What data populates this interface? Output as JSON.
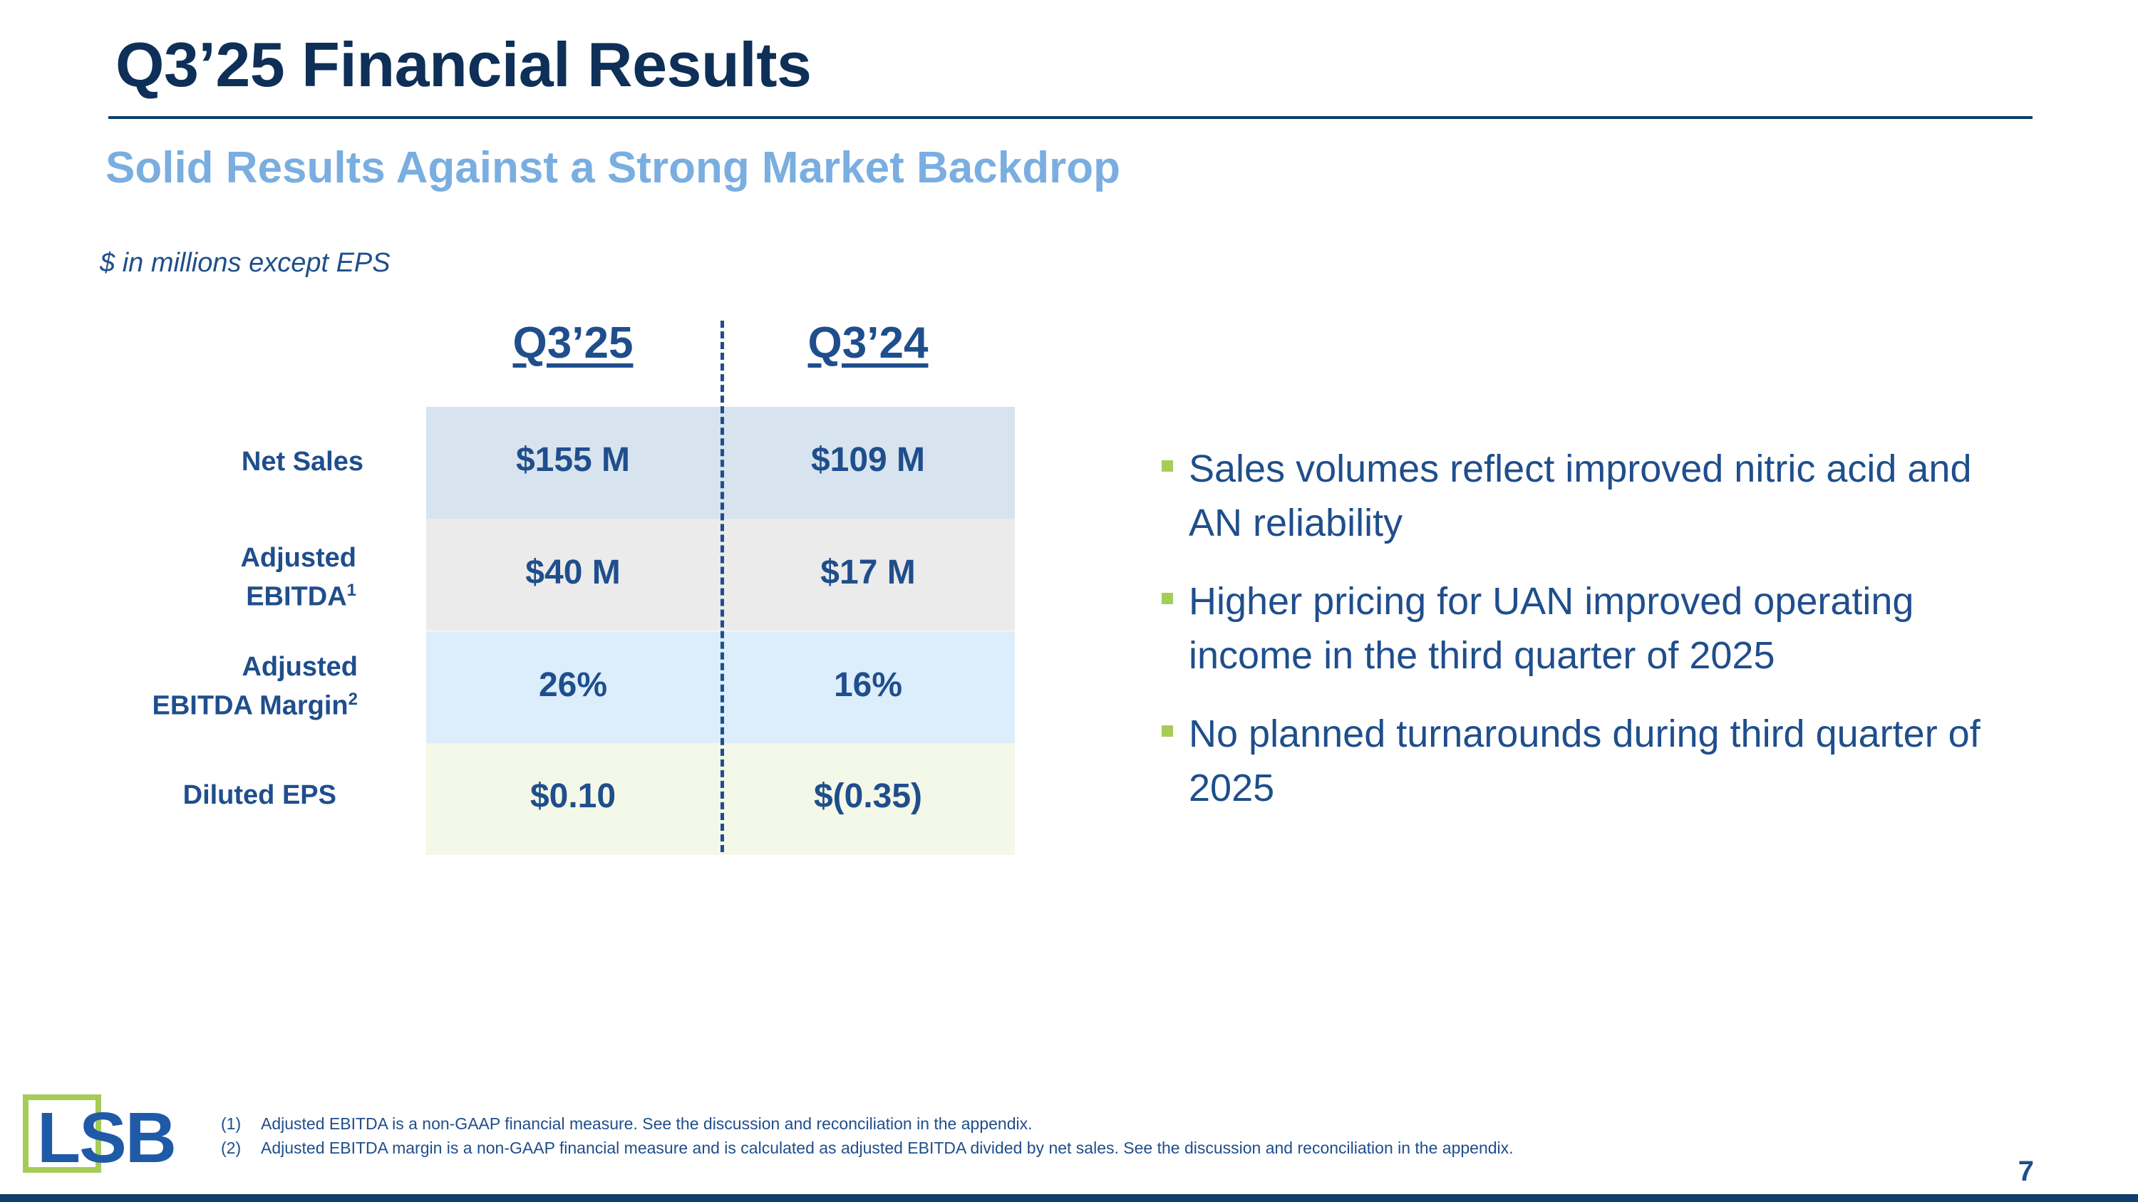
{
  "slide": {
    "title": "Q3’25 Financial Results",
    "subtitle": "Solid Results Against a Strong Market Backdrop",
    "units_note": "$ in millions except EPS",
    "page_number": "7"
  },
  "table": {
    "columns": [
      "Q3’25",
      "Q3’24"
    ],
    "rows": [
      {
        "label_line1": "Net Sales",
        "label_line2": "",
        "footnote": "",
        "q3_25": "$155 M",
        "q3_24": "$109 M"
      },
      {
        "label_line1": "Adjusted",
        "label_line2": "EBITDA",
        "footnote": "1",
        "q3_25": "$40 M",
        "q3_24": "$17 M"
      },
      {
        "label_line1": "Adjusted",
        "label_line2": "EBITDA Margin",
        "footnote": "2",
        "q3_25": "26%",
        "q3_24": "16%"
      },
      {
        "label_line1": "Diluted EPS",
        "label_line2": "",
        "footnote": "",
        "q3_25": "$0.10",
        "q3_24": "$(0.35)"
      }
    ]
  },
  "bullets": [
    "Sales volumes reflect improved nitric acid and AN reliability",
    "Higher pricing for UAN improved operating income in the third quarter of 2025",
    "No planned turnarounds during third quarter of 2025"
  ],
  "footnotes": [
    {
      "num": "(1)",
      "text": "Adjusted EBITDA is a non-GAAP financial measure.  See the discussion and reconciliation in the appendix."
    },
    {
      "num": "(2)",
      "text": "Adjusted EBITDA margin is a non-GAAP financial measure and is calculated as adjusted EBITDA divided by net sales. See the discussion and reconciliation in the appendix."
    }
  ],
  "logo": {
    "text": "LSB"
  },
  "colors": {
    "navy": "#0e2f57",
    "blue": "#1f4e8c",
    "light_blue": "#7aaee0",
    "green": "#a6cc58"
  }
}
